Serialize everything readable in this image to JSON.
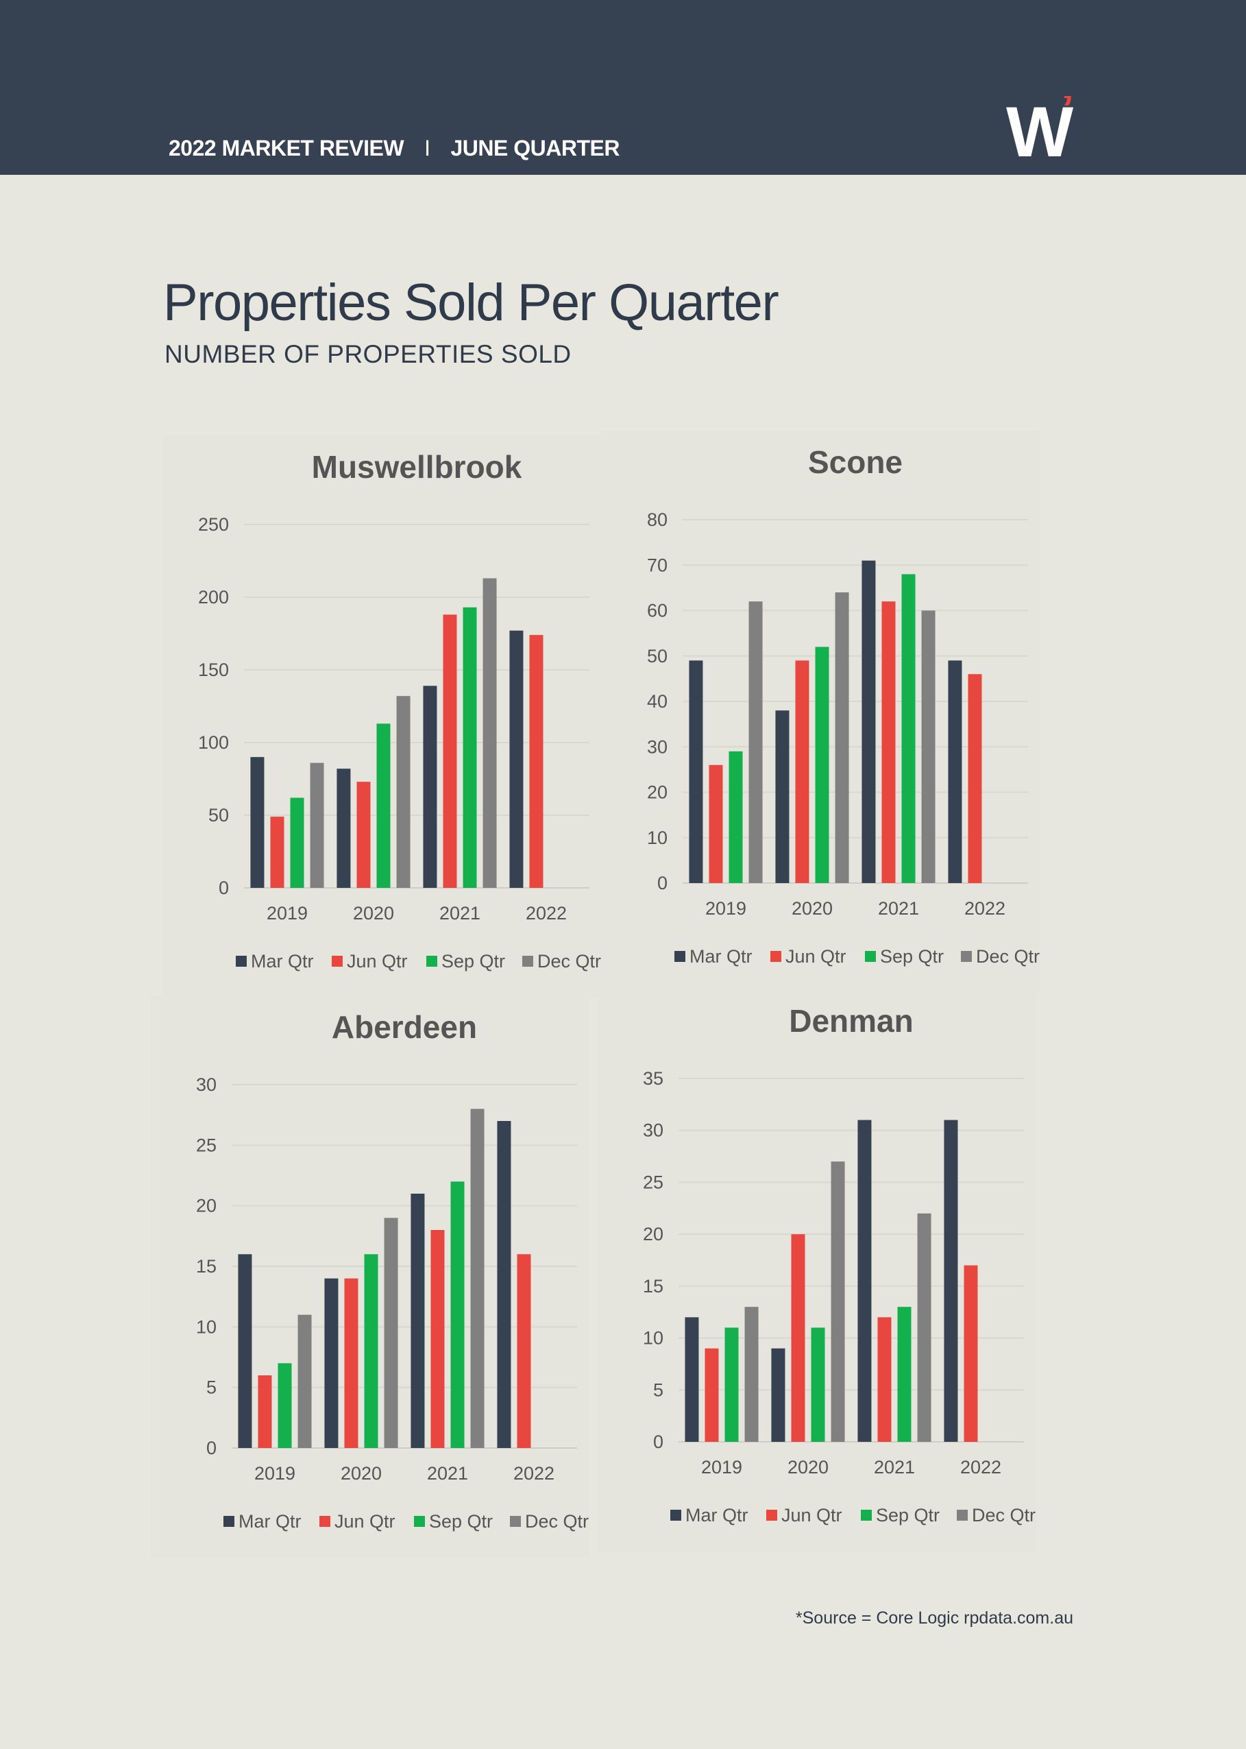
{
  "header": {
    "left_text": "2022 MARKET REVIEW",
    "separator": "I",
    "right_text": "JUNE QUARTER",
    "logo_letter": "W",
    "logo_accent": "’",
    "logo_color": "#ffffff",
    "accent_color": "#e8473f",
    "bg_color": "#364152"
  },
  "page": {
    "title": "Properties Sold Per Quarter",
    "subtitle": "NUMBER OF PROPERTIES SOLD"
  },
  "series_colors": {
    "Mar Qtr": "#364152",
    "Jun Qtr": "#e8473f",
    "Sep Qtr": "#13b04d",
    "Dec Qtr": "#808080"
  },
  "chart_data": [
    {
      "type": "bar",
      "title": "Muswellbrook",
      "categories": [
        "2019",
        "2020",
        "2021",
        "2022"
      ],
      "ylim": [
        0,
        250
      ],
      "yticks": [
        0,
        50,
        100,
        150,
        200,
        250
      ],
      "legend_position": "bottom",
      "grid": true,
      "series": [
        {
          "name": "Mar Qtr",
          "values": [
            90,
            82,
            139,
            177
          ]
        },
        {
          "name": "Jun Qtr",
          "values": [
            49,
            73,
            188,
            174
          ]
        },
        {
          "name": "Sep Qtr",
          "values": [
            62,
            113,
            193,
            null
          ]
        },
        {
          "name": "Dec Qtr",
          "values": [
            86,
            132,
            213,
            null
          ]
        }
      ]
    },
    {
      "type": "bar",
      "title": "Scone",
      "categories": [
        "2019",
        "2020",
        "2021",
        "2022"
      ],
      "ylim": [
        0,
        80
      ],
      "yticks": [
        0,
        10,
        20,
        30,
        40,
        50,
        60,
        70,
        80
      ],
      "legend_position": "bottom",
      "grid": true,
      "series": [
        {
          "name": "Mar Qtr",
          "values": [
            49,
            38,
            71,
            49
          ]
        },
        {
          "name": "Jun Qtr",
          "values": [
            26,
            49,
            62,
            46
          ]
        },
        {
          "name": "Sep Qtr",
          "values": [
            29,
            52,
            68,
            null
          ]
        },
        {
          "name": "Dec Qtr",
          "values": [
            62,
            64,
            60,
            null
          ]
        }
      ]
    },
    {
      "type": "bar",
      "title": "Aberdeen",
      "categories": [
        "2019",
        "2020",
        "2021",
        "2022"
      ],
      "ylim": [
        0,
        30
      ],
      "yticks": [
        0,
        5,
        10,
        15,
        20,
        25,
        30
      ],
      "legend_position": "bottom",
      "grid": true,
      "series": [
        {
          "name": "Mar Qtr",
          "values": [
            16,
            14,
            21,
            27
          ]
        },
        {
          "name": "Jun Qtr",
          "values": [
            6,
            14,
            18,
            16
          ]
        },
        {
          "name": "Sep Qtr",
          "values": [
            7,
            16,
            22,
            null
          ]
        },
        {
          "name": "Dec Qtr",
          "values": [
            11,
            19,
            28,
            null
          ]
        }
      ]
    },
    {
      "type": "bar",
      "title": "Denman",
      "categories": [
        "2019",
        "2020",
        "2021",
        "2022"
      ],
      "ylim": [
        0,
        35
      ],
      "yticks": [
        0,
        5,
        10,
        15,
        20,
        25,
        30,
        35
      ],
      "legend_position": "bottom",
      "grid": true,
      "series": [
        {
          "name": "Mar Qtr",
          "values": [
            12,
            9,
            31,
            31
          ]
        },
        {
          "name": "Jun Qtr",
          "values": [
            9,
            20,
            12,
            17
          ]
        },
        {
          "name": "Sep Qtr",
          "values": [
            11,
            11,
            13,
            null
          ]
        },
        {
          "name": "Dec Qtr",
          "values": [
            13,
            27,
            22,
            null
          ]
        }
      ]
    }
  ],
  "footer": {
    "source": "*Source = Core Logic rpdata.com.au"
  }
}
